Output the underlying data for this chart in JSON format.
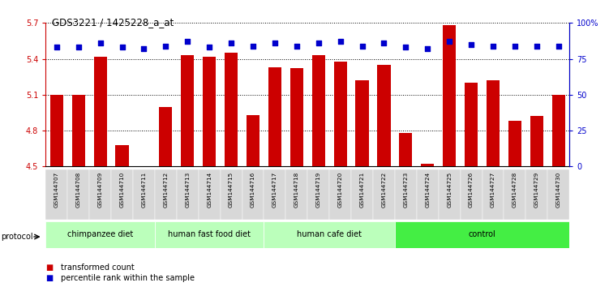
{
  "title": "GDS3221 / 1425228_a_at",
  "samples": [
    "GSM144707",
    "GSM144708",
    "GSM144709",
    "GSM144710",
    "GSM144711",
    "GSM144712",
    "GSM144713",
    "GSM144714",
    "GSM144715",
    "GSM144716",
    "GSM144717",
    "GSM144718",
    "GSM144719",
    "GSM144720",
    "GSM144721",
    "GSM144722",
    "GSM144723",
    "GSM144724",
    "GSM144725",
    "GSM144726",
    "GSM144727",
    "GSM144728",
    "GSM144729",
    "GSM144730"
  ],
  "bar_values": [
    5.1,
    5.1,
    5.42,
    4.68,
    4.5,
    5.0,
    5.43,
    5.42,
    5.45,
    4.93,
    5.33,
    5.32,
    5.43,
    5.38,
    5.22,
    5.35,
    4.78,
    4.52,
    5.68,
    5.2,
    5.22,
    4.88,
    4.92,
    5.1
  ],
  "percentile_values": [
    83,
    83,
    86,
    83,
    82,
    84,
    87,
    83,
    86,
    84,
    86,
    84,
    86,
    87,
    84,
    86,
    83,
    82,
    87,
    85,
    84,
    84,
    84,
    84
  ],
  "bar_color": "#cc0000",
  "dot_color": "#0000cc",
  "ylim_left": [
    4.5,
    5.7
  ],
  "ylim_right": [
    0,
    100
  ],
  "yticks_left": [
    4.5,
    4.8,
    5.1,
    5.4,
    5.7
  ],
  "yticks_right": [
    0,
    25,
    50,
    75,
    100
  ],
  "ytick_labels_right": [
    "0",
    "25",
    "50",
    "75",
    "100%"
  ],
  "group_boundaries": [
    {
      "label": "chimpanzee diet",
      "start": 0,
      "end": 4,
      "color": "#bbffbb"
    },
    {
      "label": "human fast food diet",
      "start": 5,
      "end": 9,
      "color": "#bbffbb"
    },
    {
      "label": "human cafe diet",
      "start": 10,
      "end": 15,
      "color": "#bbffbb"
    },
    {
      "label": "control",
      "start": 16,
      "end": 23,
      "color": "#44ee44"
    }
  ],
  "bar_width": 0.6,
  "base_value": 4.5
}
